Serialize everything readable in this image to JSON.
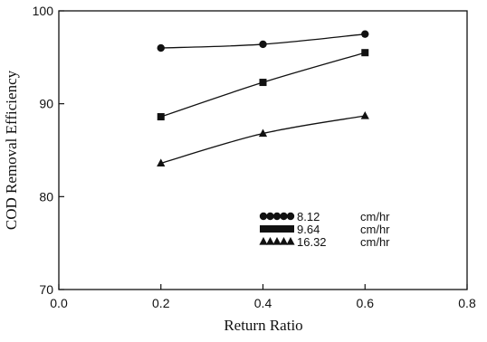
{
  "chart_data": {
    "type": "line",
    "title": "",
    "xlabel": "Return Ratio",
    "ylabel": "COD Removal Efficiency",
    "xlim": [
      0.0,
      0.8
    ],
    "ylim": [
      70,
      100
    ],
    "xticks": [
      "0.0",
      "0.2",
      "0.4",
      "0.6",
      "0.8"
    ],
    "yticks": [
      "70",
      "80",
      "90",
      "100"
    ],
    "grid": false,
    "legend_position": "bottom-right",
    "x": [
      0.2,
      0.4,
      0.6
    ],
    "series": [
      {
        "name": "8.12",
        "unit": "cm/hr",
        "marker": "circle",
        "values": [
          96.0,
          96.4,
          97.5
        ]
      },
      {
        "name": "9.64",
        "unit": "cm/hr",
        "marker": "square",
        "values": [
          88.6,
          92.3,
          95.5
        ]
      },
      {
        "name": "16.32",
        "unit": "cm/hr",
        "marker": "triangle",
        "values": [
          83.6,
          86.8,
          88.7
        ]
      }
    ]
  }
}
